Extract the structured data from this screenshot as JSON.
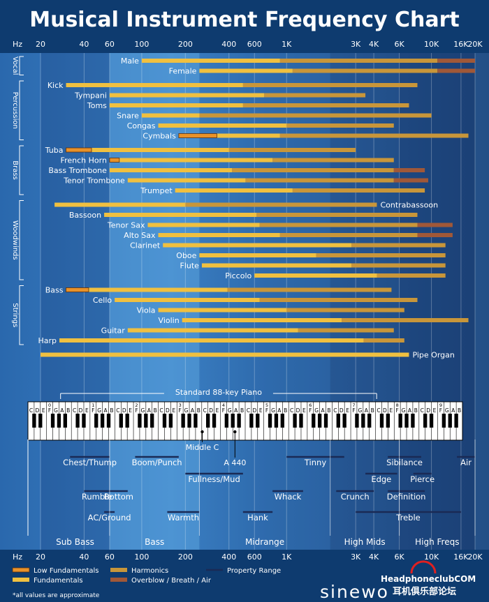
{
  "title": "Musical Instrument Frequency Chart",
  "axis_unit": "Hz",
  "ticks": [
    {
      "f": 20,
      "label": "20"
    },
    {
      "f": 40,
      "label": "40"
    },
    {
      "f": 60,
      "label": "60"
    },
    {
      "f": 100,
      "label": "100"
    },
    {
      "f": 200,
      "label": "200"
    },
    {
      "f": 400,
      "label": "400"
    },
    {
      "f": 600,
      "label": "600"
    },
    {
      "f": 1000,
      "label": "1K"
    },
    {
      "f": 3000,
      "label": "3K"
    },
    {
      "f": 4000,
      "label": "4K"
    },
    {
      "f": 6000,
      "label": "6K"
    },
    {
      "f": 10000,
      "label": "10K"
    },
    {
      "f": 16000,
      "label": "16K"
    },
    {
      "f": 20000,
      "label": "20K"
    }
  ],
  "colors": {
    "low_fundamental": "#e8922a",
    "fundamental": "#f0c040",
    "harmonic": "#c8963a",
    "overblow": "#a05838",
    "property_line": "#1a2a55"
  },
  "chart_data": {
    "type": "bar",
    "x_scale": "log",
    "xlim": [
      20,
      20000
    ],
    "groups": [
      {
        "name": "Vocal",
        "rows": [
          {
            "label": "Male",
            "fund": [
              100,
              900
            ],
            "harm": [
              900,
              11000
            ],
            "over": [
              11000,
              20000
            ],
            "label_side": "left"
          },
          {
            "label": "Female",
            "fund": [
              250,
              1100
            ],
            "harm": [
              1100,
              11000
            ],
            "over": [
              11000,
              20000
            ],
            "label_side": "left"
          }
        ]
      },
      {
        "name": "Percussion",
        "rows": [
          {
            "label": "Kick",
            "fund": [
              30,
              500
            ],
            "harm": [
              500,
              8000
            ],
            "label_side": "left"
          },
          {
            "label": "Tympani",
            "fund": [
              60,
              700
            ],
            "harm": [
              700,
              3500
            ],
            "label_side": "left"
          },
          {
            "label": "Toms",
            "fund": [
              60,
              500
            ],
            "harm": [
              500,
              7000
            ],
            "label_side": "left"
          },
          {
            "label": "Snare",
            "fund": [
              100,
              250
            ],
            "harm": [
              250,
              10000
            ],
            "label_side": "left"
          },
          {
            "label": "Congas",
            "fund": [
              130,
              1000
            ],
            "harm": [
              1000,
              5500
            ],
            "label_side": "left"
          },
          {
            "label": "Cymbals",
            "low": [
              180,
              330
            ],
            "fund": [
              330,
              900
            ],
            "harm": [
              900,
              18000
            ],
            "label_side": "left"
          }
        ]
      },
      {
        "name": "Brass",
        "rows": [
          {
            "label": "Tuba",
            "low": [
              30,
              45
            ],
            "fund": [
              45,
              400
            ],
            "harm": [
              400,
              3000
            ],
            "label_side": "left"
          },
          {
            "label": "French Horn",
            "low": [
              60,
              70
            ],
            "fund": [
              70,
              800
            ],
            "harm": [
              800,
              5500
            ],
            "label_side": "left"
          },
          {
            "label": "Bass Trombone",
            "fund": [
              60,
              420
            ],
            "harm": [
              420,
              5500
            ],
            "over": [
              5500,
              9000
            ],
            "label_side": "left"
          },
          {
            "label": "Tenor Trombone",
            "fund": [
              80,
              520
            ],
            "harm": [
              520,
              5500
            ],
            "over": [
              5500,
              9500
            ],
            "label_side": "left"
          },
          {
            "label": "Trumpet",
            "fund": [
              170,
              1100
            ],
            "harm": [
              1100,
              9000
            ],
            "label_side": "left"
          }
        ]
      },
      {
        "name": "Woodwinds",
        "rows": [
          {
            "label": "Contrabassoon",
            "fund": [
              25,
              200
            ],
            "harm": [
              200,
              4200
            ],
            "label_side": "right"
          },
          {
            "label": "Bassoon",
            "fund": [
              55,
              620
            ],
            "harm": [
              620,
              8000
            ],
            "label_side": "left"
          },
          {
            "label": "Tenor Sax",
            "fund": [
              110,
              650
            ],
            "harm": [
              650,
              8000
            ],
            "over": [
              8000,
              14000
            ],
            "label_side": "left"
          },
          {
            "label": "Alto Sax",
            "fund": [
              130,
              900
            ],
            "harm": [
              900,
              8000
            ],
            "over": [
              8000,
              14000
            ],
            "label_side": "left"
          },
          {
            "label": "Clarinet",
            "fund": [
              140,
              2800
            ],
            "harm": [
              2800,
              12500
            ],
            "label_side": "left"
          },
          {
            "label": "Oboe",
            "fund": [
              250,
              1600
            ],
            "harm": [
              1600,
              12500
            ],
            "label_side": "left"
          },
          {
            "label": "Flute",
            "fund": [
              260,
              2800
            ],
            "harm": [
              2800,
              12500
            ],
            "label_side": "left"
          },
          {
            "label": "Piccolo",
            "fund": [
              600,
              4200
            ],
            "harm": [
              4200,
              12500
            ],
            "label_side": "left"
          }
        ]
      },
      {
        "name": "Strings",
        "rows": [
          {
            "label": "Bass",
            "low": [
              30,
              43
            ],
            "fund": [
              43,
              390
            ],
            "harm": [
              390,
              5300
            ],
            "label_side": "left"
          },
          {
            "label": "Cello",
            "fund": [
              65,
              650
            ],
            "harm": [
              650,
              8000
            ],
            "label_side": "left"
          },
          {
            "label": "Viola",
            "fund": [
              130,
              1000
            ],
            "harm": [
              1000,
              6500
            ],
            "label_side": "left"
          },
          {
            "label": "Violin",
            "fund": [
              190,
              2400
            ],
            "harm": [
              2400,
              18000
            ],
            "label_side": "left"
          },
          {
            "label": "Guitar",
            "fund": [
              80,
              1200
            ],
            "harm": [
              1200,
              5500
            ],
            "label_side": "left"
          },
          {
            "label": "Harp",
            "fund": [
              27,
              3400
            ],
            "harm": [
              3400,
              6500
            ],
            "label_side": "left"
          }
        ]
      },
      {
        "name": "",
        "rows": [
          {
            "label": "Pipe Organ",
            "fund": [
              20,
              7000
            ],
            "label_side": "right"
          }
        ]
      }
    ],
    "piano": {
      "label": "Standard 88-key Piano",
      "range": [
        27.5,
        4186
      ],
      "note_letters": [
        "C",
        "D",
        "E",
        "F",
        "G",
        "A",
        "B"
      ],
      "octaves": [
        "0",
        "1",
        "2",
        "3",
        "4",
        "5",
        "6",
        "7",
        "8",
        "9"
      ],
      "markers": [
        {
          "f": 261.6,
          "label": "Middle C"
        },
        {
          "f": 440,
          "label": "A 440"
        }
      ]
    },
    "properties": [
      {
        "label": "Chest/Thump",
        "range": [
          32,
          60
        ],
        "row": 0
      },
      {
        "label": "Boom/Punch",
        "range": [
          90,
          180
        ],
        "row": 0
      },
      {
        "label": "Tinny",
        "range": [
          1000,
          2500
        ],
        "row": 0
      },
      {
        "label": "Sibilance",
        "range": [
          5000,
          8500
        ],
        "row": 0
      },
      {
        "label": "Air",
        "range": [
          15000,
          20000
        ],
        "row": 0
      },
      {
        "label": "Fullness/Mud",
        "range": [
          200,
          500
        ],
        "row": 1
      },
      {
        "label": "Edge",
        "range": [
          3500,
          5800
        ],
        "row": 1
      },
      {
        "label": "Pierce",
        "range": [
          7500,
          10000
        ],
        "row": 1
      },
      {
        "label": "Rumble",
        "range": [
          40,
          60
        ],
        "row": 2
      },
      {
        "label": "Bottom",
        "range": [
          60,
          80
        ],
        "row": 2
      },
      {
        "label": "Whack",
        "range": [
          800,
          1300
        ],
        "row": 2
      },
      {
        "label": "Crunch",
        "range": [
          2200,
          4000
        ],
        "row": 2
      },
      {
        "label": "Definition",
        "range": [
          5000,
          9000
        ],
        "row": 2
      },
      {
        "label": "AC/Ground",
        "range": [
          55,
          65
        ],
        "row": 3
      },
      {
        "label": "Warmth",
        "range": [
          150,
          250
        ],
        "row": 3
      },
      {
        "label": "Hank",
        "range": [
          500,
          800
        ],
        "row": 3
      },
      {
        "label": "Treble",
        "range": [
          3000,
          16000
        ],
        "row": 3
      }
    ],
    "ranges": [
      {
        "label": "Sub Bass",
        "range": [
          20,
          60
        ]
      },
      {
        "label": "Bass",
        "range": [
          60,
          250
        ]
      },
      {
        "label": "Midrange",
        "range": [
          250,
          2000
        ]
      },
      {
        "label": "High Mids",
        "range": [
          2000,
          6000
        ]
      },
      {
        "label": "High Freqs",
        "range": [
          6000,
          20000
        ]
      }
    ]
  },
  "legend": [
    {
      "key": "low",
      "label": "Low Fundamentals",
      "color": "#e8922a"
    },
    {
      "key": "harm",
      "label": "Harmonics",
      "color": "#c8963a"
    },
    {
      "key": "prop",
      "label": "Property Range",
      "color": "#1a2a55"
    },
    {
      "key": "fund",
      "label": "Fundamentals",
      "color": "#f0c040"
    },
    {
      "key": "over",
      "label": "Overblow / Breath / Air",
      "color": "#a05838"
    }
  ],
  "footnote": "*all values are approximate",
  "logo_text": "sinewo",
  "watermark": {
    "line1": "HeadphoneclubCOM",
    "line2": "耳机俱乐部论坛"
  }
}
